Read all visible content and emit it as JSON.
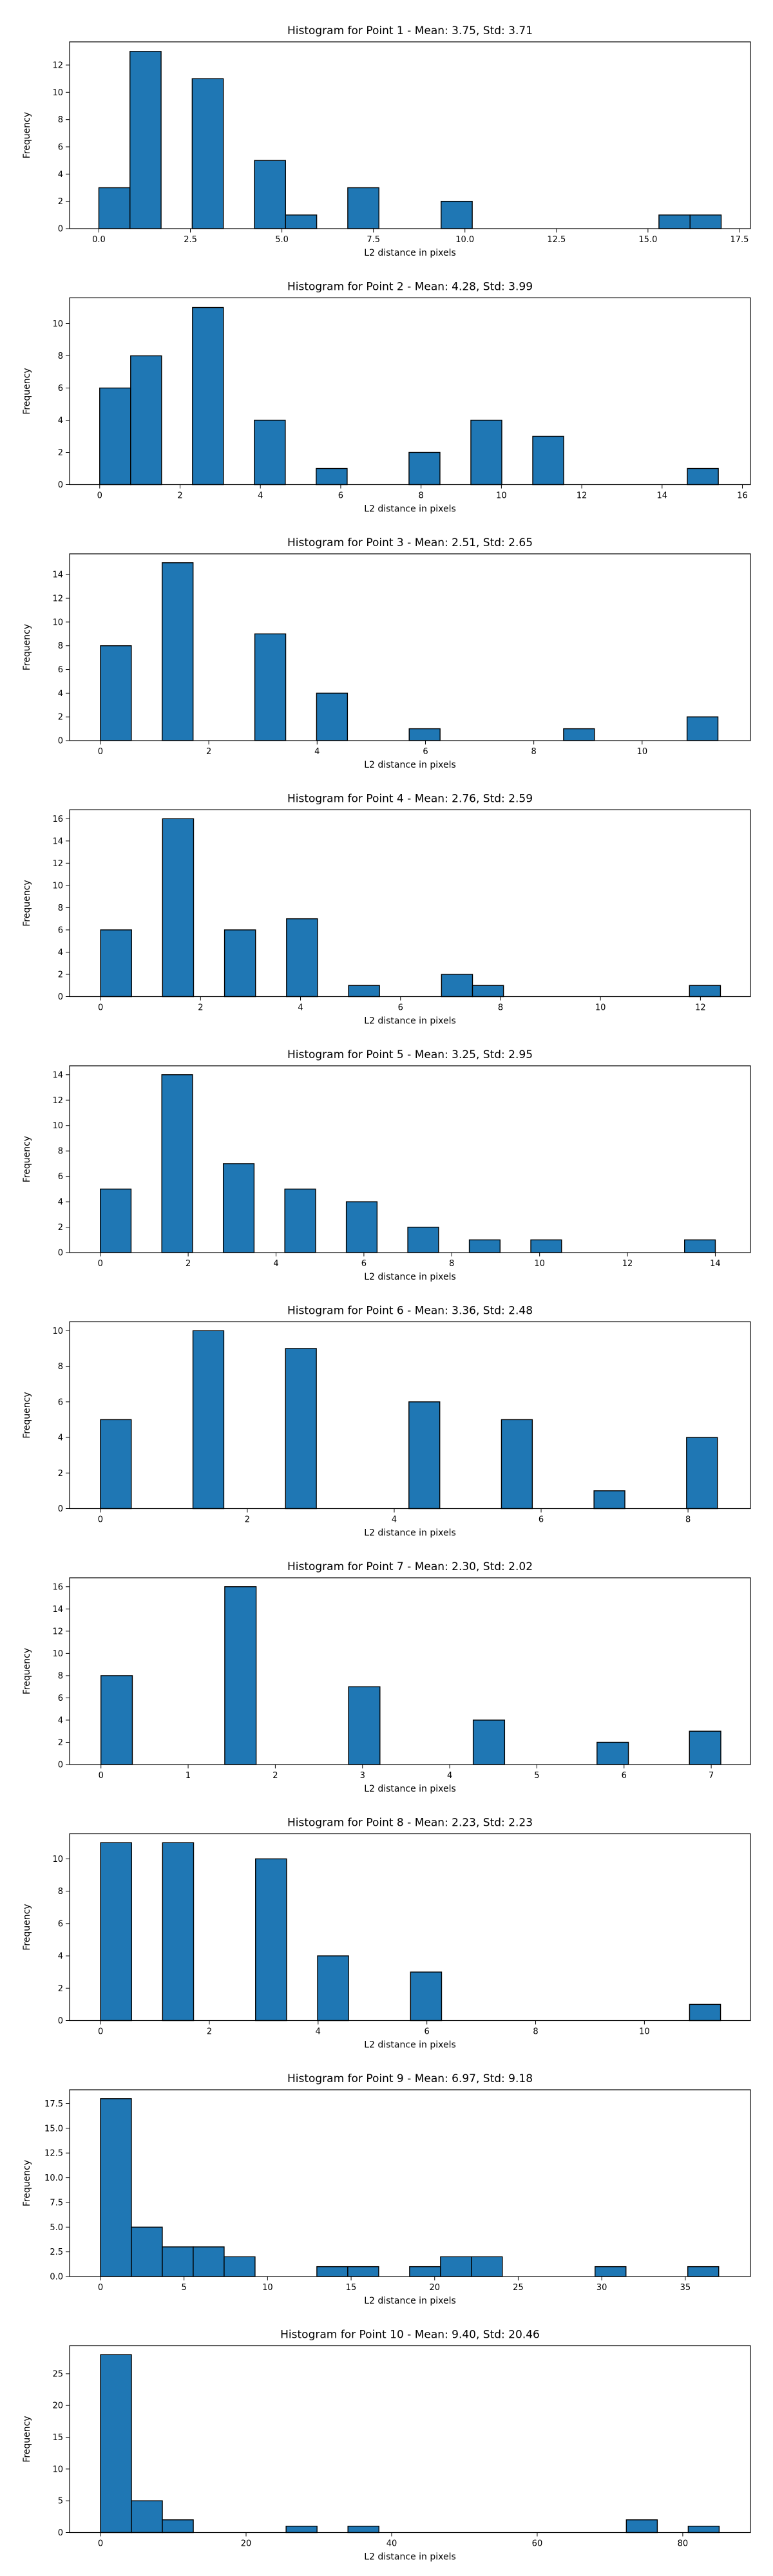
{
  "colors": {
    "bar": "#1f77b4",
    "edge": "#000000"
  },
  "chart_data": [
    {
      "type": "bar",
      "title": "Histogram for Point 1 - Mean: 3.75, Std: 3.71",
      "xlabel": "L2 distance in pixels",
      "ylabel": "Frequency",
      "xlim": [
        -0.8,
        17.8
      ],
      "ylim": [
        0,
        13.7
      ],
      "xticks": [
        0.0,
        2.5,
        5.0,
        7.5,
        10.0,
        12.5,
        15.0,
        17.5
      ],
      "xtick_labels": [
        "0.0",
        "2.5",
        "5.0",
        "7.5",
        "10.0",
        "12.5",
        "15.0",
        "17.5"
      ],
      "yticks": [
        0,
        2,
        4,
        6,
        8,
        10,
        12
      ],
      "ytick_labels": [
        "0",
        "2",
        "4",
        "6",
        "8",
        "10",
        "12"
      ],
      "bins": [
        {
          "x0": 0.0,
          "x1": 0.85,
          "count": 3
        },
        {
          "x0": 0.85,
          "x1": 1.7,
          "count": 13
        },
        {
          "x0": 2.55,
          "x1": 3.4,
          "count": 11
        },
        {
          "x0": 4.25,
          "x1": 5.1,
          "count": 5
        },
        {
          "x0": 5.1,
          "x1": 5.95,
          "count": 1
        },
        {
          "x0": 6.8,
          "x1": 7.65,
          "count": 3
        },
        {
          "x0": 9.35,
          "x1": 10.2,
          "count": 2
        },
        {
          "x0": 15.3,
          "x1": 16.15,
          "count": 1
        },
        {
          "x0": 16.15,
          "x1": 17.0,
          "count": 1
        }
      ]
    },
    {
      "type": "bar",
      "title": "Histogram for Point 2 - Mean: 4.28, Std: 3.99",
      "xlabel": "L2 distance in pixels",
      "ylabel": "Frequency",
      "xlim": [
        -0.75,
        16.2
      ],
      "ylim": [
        0,
        11.6
      ],
      "xticks": [
        0,
        2,
        4,
        6,
        8,
        10,
        12,
        14,
        16
      ],
      "xtick_labels": [
        "0",
        "2",
        "4",
        "6",
        "8",
        "10",
        "12",
        "14",
        "16"
      ],
      "yticks": [
        0,
        2,
        4,
        6,
        8,
        10
      ],
      "ytick_labels": [
        "0",
        "2",
        "4",
        "6",
        "8",
        "10"
      ],
      "bins": [
        {
          "x0": 0.0,
          "x1": 0.77,
          "count": 6
        },
        {
          "x0": 0.77,
          "x1": 1.54,
          "count": 8
        },
        {
          "x0": 2.31,
          "x1": 3.08,
          "count": 11
        },
        {
          "x0": 3.85,
          "x1": 4.62,
          "count": 4
        },
        {
          "x0": 5.39,
          "x1": 6.16,
          "count": 1
        },
        {
          "x0": 7.7,
          "x1": 8.47,
          "count": 2
        },
        {
          "x0": 9.24,
          "x1": 10.01,
          "count": 4
        },
        {
          "x0": 10.78,
          "x1": 11.55,
          "count": 3
        },
        {
          "x0": 14.63,
          "x1": 15.4,
          "count": 1
        }
      ]
    },
    {
      "type": "bar",
      "title": "Histogram for Point 3 - Mean: 2.51, Std: 2.65",
      "xlabel": "L2 distance in pixels",
      "ylabel": "Frequency",
      "xlim": [
        -0.57,
        12.0
      ],
      "ylim": [
        0,
        15.75
      ],
      "xticks": [
        0,
        2,
        4,
        6,
        8,
        10
      ],
      "xtick_labels": [
        "0",
        "2",
        "4",
        "6",
        "8",
        "10"
      ],
      "yticks": [
        0,
        2,
        4,
        6,
        8,
        10,
        12,
        14
      ],
      "ytick_labels": [
        "0",
        "2",
        "4",
        "6",
        "8",
        "10",
        "12",
        "14"
      ],
      "bins": [
        {
          "x0": 0.0,
          "x1": 0.57,
          "count": 8
        },
        {
          "x0": 1.14,
          "x1": 1.71,
          "count": 15
        },
        {
          "x0": 2.85,
          "x1": 3.42,
          "count": 9
        },
        {
          "x0": 3.99,
          "x1": 4.56,
          "count": 4
        },
        {
          "x0": 5.7,
          "x1": 6.27,
          "count": 1
        },
        {
          "x0": 8.55,
          "x1": 9.12,
          "count": 1
        },
        {
          "x0": 10.83,
          "x1": 11.4,
          "count": 2
        }
      ]
    },
    {
      "type": "bar",
      "title": "Histogram for Point 4 - Mean: 2.76, Std: 2.59",
      "xlabel": "L2 distance in pixels",
      "ylabel": "Frequency",
      "xlim": [
        -0.62,
        13.0
      ],
      "ylim": [
        0,
        16.8
      ],
      "xticks": [
        0,
        2,
        4,
        6,
        8,
        10,
        12
      ],
      "xtick_labels": [
        "0",
        "2",
        "4",
        "6",
        "8",
        "10",
        "12"
      ],
      "yticks": [
        0,
        2,
        4,
        6,
        8,
        10,
        12,
        14,
        16
      ],
      "ytick_labels": [
        "0",
        "2",
        "4",
        "6",
        "8",
        "10",
        "12",
        "14",
        "16"
      ],
      "bins": [
        {
          "x0": 0.0,
          "x1": 0.62,
          "count": 6
        },
        {
          "x0": 1.24,
          "x1": 1.86,
          "count": 16
        },
        {
          "x0": 2.48,
          "x1": 3.1,
          "count": 6
        },
        {
          "x0": 3.72,
          "x1": 4.34,
          "count": 7
        },
        {
          "x0": 4.96,
          "x1": 5.58,
          "count": 1
        },
        {
          "x0": 6.82,
          "x1": 7.44,
          "count": 2
        },
        {
          "x0": 7.44,
          "x1": 8.06,
          "count": 1
        },
        {
          "x0": 11.78,
          "x1": 12.4,
          "count": 1
        }
      ]
    },
    {
      "type": "bar",
      "title": "Histogram for Point 5 - Mean: 3.25, Std: 2.95",
      "xlabel": "L2 distance in pixels",
      "ylabel": "Frequency",
      "xlim": [
        -0.7,
        14.8
      ],
      "ylim": [
        0,
        14.7
      ],
      "xticks": [
        0,
        2,
        4,
        6,
        8,
        10,
        12,
        14
      ],
      "xtick_labels": [
        "0",
        "2",
        "4",
        "6",
        "8",
        "10",
        "12",
        "14"
      ],
      "yticks": [
        0,
        2,
        4,
        6,
        8,
        10,
        12,
        14
      ],
      "ytick_labels": [
        "0",
        "2",
        "4",
        "6",
        "8",
        "10",
        "12",
        "14"
      ],
      "bins": [
        {
          "x0": 0.0,
          "x1": 0.7,
          "count": 5
        },
        {
          "x0": 1.4,
          "x1": 2.1,
          "count": 14
        },
        {
          "x0": 2.8,
          "x1": 3.5,
          "count": 7
        },
        {
          "x0": 4.2,
          "x1": 4.9,
          "count": 5
        },
        {
          "x0": 5.6,
          "x1": 6.3,
          "count": 4
        },
        {
          "x0": 7.0,
          "x1": 7.7,
          "count": 2
        },
        {
          "x0": 8.4,
          "x1": 9.1,
          "count": 1
        },
        {
          "x0": 9.8,
          "x1": 10.5,
          "count": 1
        },
        {
          "x0": 13.3,
          "x1": 14.0,
          "count": 1
        }
      ]
    },
    {
      "type": "bar",
      "title": "Histogram for Point 6 - Mean: 3.36, Std: 2.48",
      "xlabel": "L2 distance in pixels",
      "ylabel": "Frequency",
      "xlim": [
        -0.42,
        8.85
      ],
      "ylim": [
        0,
        10.5
      ],
      "xticks": [
        0,
        2,
        4,
        6,
        8
      ],
      "xtick_labels": [
        "0",
        "2",
        "4",
        "6",
        "8"
      ],
      "yticks": [
        0,
        2,
        4,
        6,
        8,
        10
      ],
      "ytick_labels": [
        "0",
        "2",
        "4",
        "6",
        "8",
        "10"
      ],
      "bins": [
        {
          "x0": 0.0,
          "x1": 0.42,
          "count": 5
        },
        {
          "x0": 1.26,
          "x1": 1.68,
          "count": 10
        },
        {
          "x0": 2.52,
          "x1": 2.94,
          "count": 9
        },
        {
          "x0": 4.2,
          "x1": 4.62,
          "count": 6
        },
        {
          "x0": 5.46,
          "x1": 5.88,
          "count": 5
        },
        {
          "x0": 6.72,
          "x1": 7.14,
          "count": 1
        },
        {
          "x0": 7.98,
          "x1": 8.4,
          "count": 4
        }
      ]
    },
    {
      "type": "bar",
      "title": "Histogram for Point 7 - Mean: 2.30, Std: 2.02",
      "xlabel": "L2 distance in pixels",
      "ylabel": "Frequency",
      "xlim": [
        -0.36,
        7.45
      ],
      "ylim": [
        0,
        16.8
      ],
      "xticks": [
        0,
        1,
        2,
        3,
        4,
        5,
        6,
        7
      ],
      "xtick_labels": [
        "0",
        "1",
        "2",
        "3",
        "4",
        "5",
        "6",
        "7"
      ],
      "yticks": [
        0,
        2,
        4,
        6,
        8,
        10,
        12,
        14,
        16
      ],
      "ytick_labels": [
        "0",
        "2",
        "4",
        "6",
        "8",
        "10",
        "12",
        "14",
        "16"
      ],
      "bins": [
        {
          "x0": 0.0,
          "x1": 0.36,
          "count": 8
        },
        {
          "x0": 1.42,
          "x1": 1.78,
          "count": 16
        },
        {
          "x0": 2.84,
          "x1": 3.2,
          "count": 7
        },
        {
          "x0": 4.27,
          "x1": 4.63,
          "count": 4
        },
        {
          "x0": 5.69,
          "x1": 6.05,
          "count": 2
        },
        {
          "x0": 6.75,
          "x1": 7.11,
          "count": 3
        }
      ]
    },
    {
      "type": "bar",
      "title": "Histogram for Point 8 - Mean: 2.23, Std: 2.23",
      "xlabel": "L2 distance in pixels",
      "ylabel": "Frequency",
      "xlim": [
        -0.57,
        11.95
      ],
      "ylim": [
        0,
        11.55
      ],
      "xticks": [
        0,
        2,
        4,
        6,
        8,
        10
      ],
      "xtick_labels": [
        "0",
        "2",
        "4",
        "6",
        "8",
        "10"
      ],
      "yticks": [
        0,
        2,
        4,
        6,
        8,
        10
      ],
      "ytick_labels": [
        "0",
        "2",
        "4",
        "6",
        "8",
        "10"
      ],
      "bins": [
        {
          "x0": 0.0,
          "x1": 0.57,
          "count": 11
        },
        {
          "x0": 1.14,
          "x1": 1.71,
          "count": 11
        },
        {
          "x0": 2.85,
          "x1": 3.42,
          "count": 10
        },
        {
          "x0": 3.99,
          "x1": 4.56,
          "count": 4
        },
        {
          "x0": 5.7,
          "x1": 6.27,
          "count": 3
        },
        {
          "x0": 10.83,
          "x1": 11.4,
          "count": 1
        }
      ]
    },
    {
      "type": "bar",
      "title": "Histogram for Point 9 - Mean: 6.97, Std: 9.18",
      "xlabel": "L2 distance in pixels",
      "ylabel": "Frequency",
      "xlim": [
        -1.85,
        38.9
      ],
      "ylim": [
        0,
        18.9
      ],
      "xticks": [
        0,
        5,
        10,
        15,
        20,
        25,
        30,
        35
      ],
      "xtick_labels": [
        "0",
        "5",
        "10",
        "15",
        "20",
        "25",
        "30",
        "35"
      ],
      "yticks": [
        0.0,
        2.5,
        5.0,
        7.5,
        10.0,
        12.5,
        15.0,
        17.5
      ],
      "ytick_labels": [
        "0.0",
        "2.5",
        "5.0",
        "7.5",
        "10.0",
        "12.5",
        "15.0",
        "17.5"
      ],
      "bins": [
        {
          "x0": 0.0,
          "x1": 1.85,
          "count": 18
        },
        {
          "x0": 1.85,
          "x1": 3.7,
          "count": 5
        },
        {
          "x0": 3.7,
          "x1": 5.55,
          "count": 3
        },
        {
          "x0": 5.55,
          "x1": 7.4,
          "count": 3
        },
        {
          "x0": 7.4,
          "x1": 9.25,
          "count": 2
        },
        {
          "x0": 12.95,
          "x1": 14.8,
          "count": 1
        },
        {
          "x0": 14.8,
          "x1": 16.65,
          "count": 1
        },
        {
          "x0": 18.5,
          "x1": 20.35,
          "count": 1
        },
        {
          "x0": 20.35,
          "x1": 22.2,
          "count": 2
        },
        {
          "x0": 22.2,
          "x1": 24.05,
          "count": 2
        },
        {
          "x0": 29.6,
          "x1": 31.45,
          "count": 1
        },
        {
          "x0": 35.15,
          "x1": 37.0,
          "count": 1
        }
      ]
    },
    {
      "type": "bar",
      "title": "Histogram for Point 10 - Mean: 9.40, Std: 20.46",
      "xlabel": "L2 distance in pixels",
      "ylabel": "Frequency",
      "xlim": [
        -4.25,
        89.3
      ],
      "ylim": [
        0,
        29.4
      ],
      "xticks": [
        0,
        20,
        40,
        60,
        80
      ],
      "xtick_labels": [
        "0",
        "20",
        "40",
        "60",
        "80"
      ],
      "yticks": [
        0,
        5,
        10,
        15,
        20,
        25
      ],
      "ytick_labels": [
        "0",
        "5",
        "10",
        "15",
        "20",
        "25"
      ],
      "bins": [
        {
          "x0": 0.0,
          "x1": 4.25,
          "count": 28
        },
        {
          "x0": 4.25,
          "x1": 8.5,
          "count": 5
        },
        {
          "x0": 8.5,
          "x1": 12.75,
          "count": 2
        },
        {
          "x0": 25.5,
          "x1": 29.75,
          "count": 1
        },
        {
          "x0": 34.0,
          "x1": 38.25,
          "count": 1
        },
        {
          "x0": 72.25,
          "x1": 76.5,
          "count": 2
        },
        {
          "x0": 80.75,
          "x1": 85.0,
          "count": 1
        }
      ]
    }
  ]
}
